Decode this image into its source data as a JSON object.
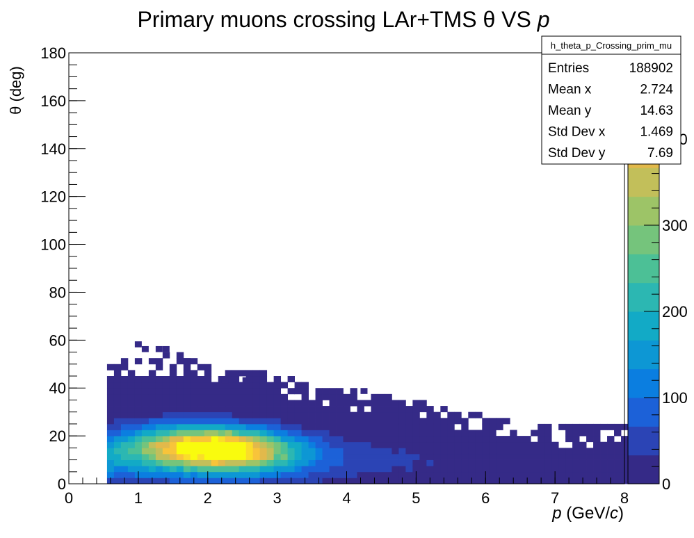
{
  "chart_data": {
    "type": "heatmap",
    "title": {
      "prefix": "Primary muons crossing LAr+TMS ",
      "theta": "θ",
      "middle": " VS ",
      "p": "p"
    },
    "xlabel": {
      "var": "p",
      "open": " (GeV/",
      "c": "c",
      "close": ")"
    },
    "ylabel": "θ (deg)",
    "xlim": [
      0,
      8
    ],
    "ylim": [
      0,
      180
    ],
    "x_ticks": [
      "0",
      "1",
      "2",
      "3",
      "4",
      "5",
      "6",
      "7",
      "8"
    ],
    "y_ticks": [
      "0",
      "20",
      "40",
      "60",
      "80",
      "100",
      "120",
      "140",
      "160",
      "180"
    ],
    "z_ticks": [
      "0",
      "100",
      "200",
      "300",
      "400"
    ],
    "z_partial_label": "0",
    "zlim": [
      0,
      500
    ],
    "bins": {
      "x_width": 0.1,
      "y_width": 2.5
    },
    "colormap": [
      "#352a87",
      "#2b44b5",
      "#1c61d8",
      "#0b7ee0",
      "#0d97d4",
      "#12aac6",
      "#2cb7b2",
      "#4cc096",
      "#75c47c",
      "#9dc467",
      "#c2bf5a",
      "#e2b94b",
      "#f8c43a",
      "#fadd2a",
      "#f9fb0e"
    ],
    "description_of_density": {
      "peak": {
        "p": 2.1,
        "theta": 13.5,
        "count": 500
      },
      "note": "entries populate p from 0.55 to 8 and theta from 0 to about 60 deg"
    },
    "stats_box": {
      "name": "h_theta_p_Crossing_prim_mu",
      "rows": [
        {
          "label": "Entries",
          "value": "188902"
        },
        {
          "label": "Mean x",
          "value": "2.724"
        },
        {
          "label": "Mean y",
          "value": "14.63"
        },
        {
          "label": "Std Dev x",
          "value": "1.469"
        },
        {
          "label": "Std Dev y",
          "value": "7.69"
        }
      ]
    },
    "grid": false,
    "legend": "none"
  }
}
